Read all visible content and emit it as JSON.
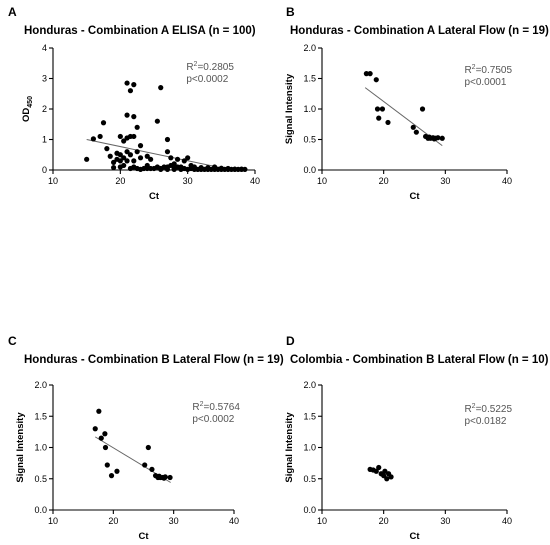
{
  "chart_data": [
    {
      "panel": "A",
      "type": "scatter",
      "title": "Honduras - Combination A ELISA (n = 100)",
      "xlabel": "Ct",
      "ylabel": "OD",
      "ylabel_sub": "450",
      "xlim": [
        10,
        40
      ],
      "ylim": [
        0,
        4
      ],
      "xticks": [
        "10",
        "20",
        "30",
        "40"
      ],
      "yticks": [
        "0",
        "1",
        "2",
        "3",
        "4"
      ],
      "annotation": {
        "r2_prefix": "R",
        "r2_sup": "2",
        "r2_value": "=0.2805",
        "p": "p<0.0002"
      },
      "fit": {
        "x": [
          15,
          37
        ],
        "y": [
          1.0,
          -0.02
        ]
      },
      "points": [
        [
          15,
          0.35
        ],
        [
          16,
          1.02
        ],
        [
          17,
          1.1
        ],
        [
          17.5,
          1.55
        ],
        [
          18,
          0.7
        ],
        [
          18.5,
          0.45
        ],
        [
          19,
          0.25
        ],
        [
          19,
          0.08
        ],
        [
          19.5,
          0.35
        ],
        [
          19.5,
          0.55
        ],
        [
          20,
          1.1
        ],
        [
          20,
          0.5
        ],
        [
          20,
          0.3
        ],
        [
          20,
          0.1
        ],
        [
          20.5,
          0.95
        ],
        [
          20.5,
          0.4
        ],
        [
          21,
          2.85
        ],
        [
          21,
          1.8
        ],
        [
          21,
          1.05
        ],
        [
          21,
          0.6
        ],
        [
          21,
          0.3
        ],
        [
          21.5,
          2.6
        ],
        [
          21.5,
          1.1
        ],
        [
          21.5,
          0.5
        ],
        [
          21.5,
          0.05
        ],
        [
          22,
          2.8
        ],
        [
          22,
          1.75
        ],
        [
          22,
          1.1
        ],
        [
          22,
          0.3
        ],
        [
          22,
          0.1
        ],
        [
          22.5,
          1.4
        ],
        [
          22.5,
          0.05
        ],
        [
          23,
          0.8
        ],
        [
          23,
          0.4
        ],
        [
          23,
          0.02
        ],
        [
          23.5,
          0.05
        ],
        [
          24,
          0.45
        ],
        [
          24,
          0.15
        ],
        [
          24.5,
          0.35
        ],
        [
          24.5,
          0.05
        ],
        [
          25,
          0.05
        ],
        [
          25.5,
          1.6
        ],
        [
          25.5,
          0.1
        ],
        [
          26,
          2.7
        ],
        [
          26,
          0.05
        ],
        [
          26,
          0.02
        ],
        [
          26.5,
          0.1
        ],
        [
          27,
          1.0
        ],
        [
          27,
          0.6
        ],
        [
          27,
          0.1
        ],
        [
          27,
          0.02
        ],
        [
          27.5,
          0.4
        ],
        [
          27.5,
          0.15
        ],
        [
          28,
          0.2
        ],
        [
          28,
          0.05
        ],
        [
          28,
          0.02
        ],
        [
          28.5,
          0.1
        ],
        [
          29,
          0.02
        ],
        [
          29,
          0.1
        ],
        [
          29.5,
          0.3
        ],
        [
          29.5,
          0.05
        ],
        [
          30,
          0.4
        ],
        [
          30,
          0.02
        ],
        [
          30.5,
          0.05
        ],
        [
          30.5,
          0.15
        ],
        [
          31,
          0.02
        ],
        [
          31,
          0.05
        ],
        [
          31.5,
          0.02
        ],
        [
          32,
          0.05
        ],
        [
          32,
          0.02
        ],
        [
          32.5,
          0.02
        ],
        [
          33,
          0.03
        ],
        [
          33,
          0.08
        ],
        [
          33.5,
          0.02
        ],
        [
          34,
          0.02
        ],
        [
          34,
          0.05
        ],
        [
          34.5,
          0.02
        ],
        [
          35,
          0.02
        ],
        [
          35,
          0.04
        ],
        [
          35.5,
          0.02
        ],
        [
          36,
          0.02
        ],
        [
          36,
          0.03
        ],
        [
          36.5,
          0.02
        ],
        [
          37,
          0.02
        ],
        [
          37,
          0.03
        ],
        [
          37.5,
          0.02
        ],
        [
          38,
          0.02
        ],
        [
          38,
          0.03
        ],
        [
          38.5,
          0.02
        ],
        [
          29,
          0.05
        ],
        [
          31,
          0.1
        ],
        [
          32,
          0.08
        ],
        [
          33,
          0.02
        ],
        [
          34,
          0.1
        ],
        [
          35,
          0.06
        ],
        [
          36,
          0.05
        ],
        [
          24,
          0.05
        ],
        [
          22.5,
          0.6
        ],
        [
          20.5,
          0.15
        ],
        [
          28.5,
          0.35
        ]
      ]
    },
    {
      "panel": "B",
      "type": "scatter",
      "title": "Honduras - Combination A Lateral Flow (n = 19)",
      "xlabel": "Ct",
      "ylabel": "Signal Intensity",
      "xlim": [
        10,
        40
      ],
      "ylim": [
        0,
        2
      ],
      "xticks": [
        "10",
        "20",
        "30",
        "40"
      ],
      "yticks": [
        "0.0",
        "0.5",
        "1.0",
        "1.5",
        "2.0"
      ],
      "annotation": {
        "r2_prefix": "R",
        "r2_sup": "2",
        "r2_value": "=0.7505",
        "p": "p<0.0001"
      },
      "fit": {
        "x": [
          17,
          29.5
        ],
        "y": [
          1.35,
          0.4
        ]
      },
      "points": [
        [
          17.2,
          1.58
        ],
        [
          17.8,
          1.58
        ],
        [
          18.8,
          1.48
        ],
        [
          19,
          1.0
        ],
        [
          19.2,
          0.85
        ],
        [
          19.8,
          1.0
        ],
        [
          20.7,
          0.78
        ],
        [
          24.8,
          0.7
        ],
        [
          25.3,
          0.62
        ],
        [
          26.3,
          1.0
        ],
        [
          26.8,
          0.55
        ],
        [
          27.2,
          0.52
        ],
        [
          27.6,
          0.52
        ],
        [
          28.0,
          0.53
        ],
        [
          28.4,
          0.52
        ],
        [
          28.8,
          0.53
        ],
        [
          29.5,
          0.52
        ],
        [
          27.4,
          0.54
        ],
        [
          28.2,
          0.51
        ]
      ]
    },
    {
      "panel": "C",
      "type": "scatter",
      "title": "Honduras - Combination B Lateral Flow (n = 19)",
      "xlabel": "Ct",
      "ylabel": "Signal Intensity",
      "xlim": [
        10,
        40
      ],
      "ylim": [
        0,
        2
      ],
      "xticks": [
        "10",
        "20",
        "30",
        "40"
      ],
      "yticks": [
        "0.0",
        "0.5",
        "1.0",
        "1.5",
        "2.0"
      ],
      "annotation": {
        "r2_prefix": "R",
        "r2_sup": "2",
        "r2_value": "=0.5764",
        "p": "p<0.0002"
      },
      "fit": {
        "x": [
          17,
          29.5
        ],
        "y": [
          1.17,
          0.44
        ]
      },
      "points": [
        [
          17,
          1.3
        ],
        [
          17.6,
          1.58
        ],
        [
          18,
          1.15
        ],
        [
          18.6,
          1.22
        ],
        [
          18.7,
          1.0
        ],
        [
          19,
          0.72
        ],
        [
          19.7,
          0.55
        ],
        [
          20.6,
          0.62
        ],
        [
          25.2,
          0.72
        ],
        [
          25.8,
          1.0
        ],
        [
          26.4,
          0.65
        ],
        [
          27.0,
          0.55
        ],
        [
          27.4,
          0.52
        ],
        [
          27.8,
          0.52
        ],
        [
          28.2,
          0.52
        ],
        [
          28.6,
          0.53
        ],
        [
          29.4,
          0.52
        ],
        [
          27.6,
          0.54
        ],
        [
          28.4,
          0.51
        ]
      ]
    },
    {
      "panel": "D",
      "type": "scatter",
      "title": "Colombia - Combination B Lateral Flow (n = 10)",
      "xlabel": "Ct",
      "ylabel": "Signal Intensity",
      "xlim": [
        10,
        40
      ],
      "ylim": [
        0,
        2
      ],
      "xticks": [
        "10",
        "20",
        "30",
        "40"
      ],
      "yticks": [
        "0.0",
        "0.5",
        "1.0",
        "1.5",
        "2.0"
      ],
      "annotation": {
        "r2_prefix": "R",
        "r2_sup": "2",
        "r2_value": "=0.5225",
        "p": "p<0.0182"
      },
      "points": [
        [
          17.8,
          0.65
        ],
        [
          18.3,
          0.64
        ],
        [
          18.8,
          0.62
        ],
        [
          19.2,
          0.68
        ],
        [
          19.6,
          0.58
        ],
        [
          20.0,
          0.55
        ],
        [
          20.2,
          0.62
        ],
        [
          20.5,
          0.5
        ],
        [
          20.8,
          0.58
        ],
        [
          21.2,
          0.53
        ]
      ]
    }
  ]
}
